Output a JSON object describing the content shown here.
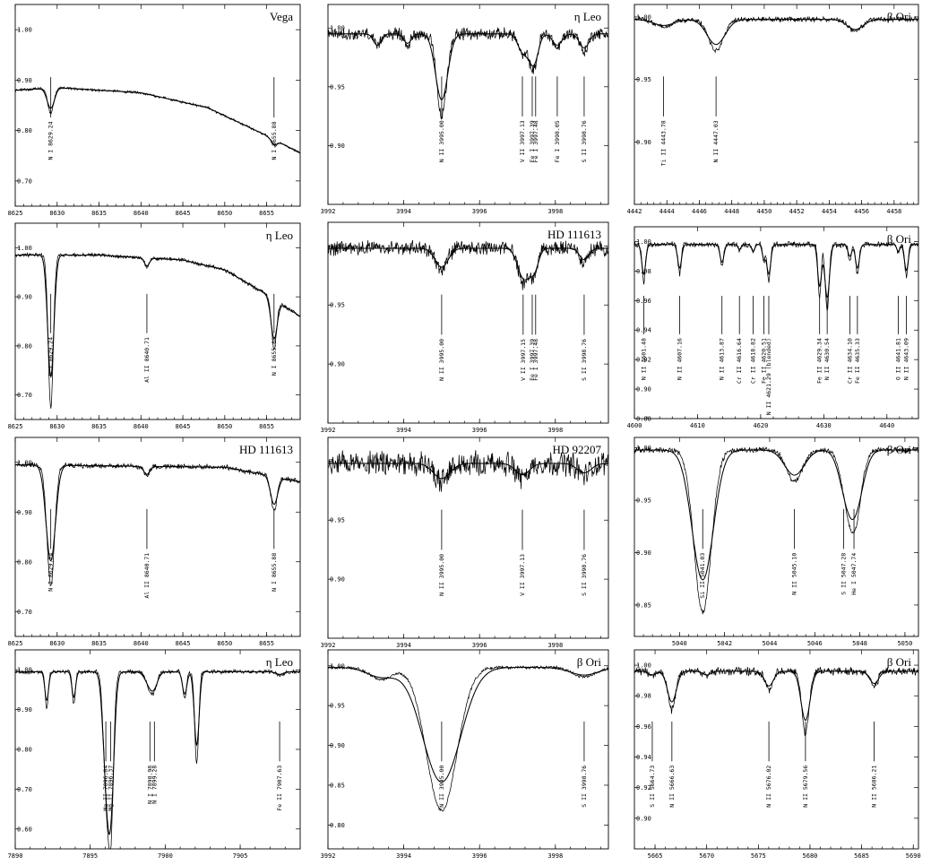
{
  "chart_data": [
    {
      "type": "line",
      "title": "Vega",
      "xlim": [
        8625,
        8659
      ],
      "ylim": [
        0.65,
        1.05
      ],
      "xticks": [
        8625,
        8630,
        8635,
        8640,
        8645,
        8650,
        8655
      ],
      "yticks": [
        0.7,
        0.8,
        0.9,
        1.0
      ],
      "continuum": {
        "x": [
          8625,
          8630,
          8640,
          8648,
          8655,
          8659
        ],
        "y": [
          0.88,
          0.885,
          0.875,
          0.845,
          0.79,
          0.755
        ]
      },
      "lines": [
        {
          "x": 8629.24,
          "depth": 0.05,
          "width": 0.35,
          "label": "N I 8629.24"
        },
        {
          "x": 8655.88,
          "depth": 0.012,
          "width": 0.3,
          "label": "N I 8655.88"
        }
      ],
      "noise": 0.002
    },
    {
      "type": "line",
      "title": "η Leo",
      "xlim": [
        3992,
        3999.4
      ],
      "ylim": [
        0.85,
        1.02
      ],
      "xticks": [
        3992,
        3994,
        3996,
        3998
      ],
      "yticks": [
        0.9,
        0.95,
        1.0
      ],
      "continuum": {
        "x": [
          3992,
          3999.4
        ],
        "y": [
          0.995,
          0.995
        ]
      },
      "lines": [
        {
          "x": 3995.0,
          "depth": 0.07,
          "width": 0.13,
          "label": "N II 3995.00"
        },
        {
          "x": 3997.13,
          "depth": 0.018,
          "width": 0.1,
          "label": "V II 3997.13"
        },
        {
          "x": 3997.39,
          "depth": 0.025,
          "width": 0.1,
          "label": "Fe I 3997.39"
        },
        {
          "x": 3997.48,
          "depth": 0.01,
          "width": 0.08,
          "label": "Fe I 3997.48"
        },
        {
          "x": 3998.05,
          "depth": 0.012,
          "width": 0.1,
          "label": "Fe I 3998.05"
        },
        {
          "x": 3998.76,
          "depth": 0.015,
          "width": 0.1,
          "label": "S II 3998.76"
        },
        {
          "x": 3993.3,
          "depth": 0.012,
          "width": 0.08
        },
        {
          "x": 3994.1,
          "depth": 0.01,
          "width": 0.08
        }
      ],
      "noise": 0.004
    },
    {
      "type": "line",
      "title": "β Ori",
      "xlim": [
        4442,
        4459.5
      ],
      "ylim": [
        0.85,
        1.01
      ],
      "xticks": [
        4442,
        4444,
        4446,
        4448,
        4450,
        4452,
        4454,
        4456,
        4458
      ],
      "yticks": [
        0.9,
        0.95,
        1.0
      ],
      "continuum": {
        "x": [
          4442,
          4459.5
        ],
        "y": [
          0.998,
          0.998
        ]
      },
      "lines": [
        {
          "x": 4443.8,
          "depth": 0.006,
          "width": 0.5,
          "label": "Ti II 4443.78"
        },
        {
          "x": 4447.03,
          "depth": 0.025,
          "width": 0.45,
          "label": "N II 4447.03"
        },
        {
          "x": 4455.6,
          "depth": 0.01,
          "width": 0.4
        }
      ],
      "noise": 0.0015
    },
    {
      "type": "line",
      "title": "η Leo",
      "xlim": [
        8625,
        8659
      ],
      "ylim": [
        0.65,
        1.05
      ],
      "xticks": [
        8625,
        8630,
        8635,
        8640,
        8645,
        8650,
        8655
      ],
      "yticks": [
        0.7,
        0.8,
        0.9,
        1.0
      ],
      "continuum": {
        "x": [
          8625,
          8635,
          8645,
          8650,
          8655,
          8659
        ],
        "y": [
          0.985,
          0.985,
          0.975,
          0.955,
          0.905,
          0.86
        ]
      },
      "lines": [
        {
          "x": 8629.24,
          "depth": 0.31,
          "width": 0.3,
          "label": "N I 8629.24"
        },
        {
          "x": 8640.71,
          "depth": 0.02,
          "width": 0.25,
          "label": "Al II 8640.71"
        },
        {
          "x": 8655.88,
          "depth": 0.1,
          "width": 0.3,
          "label": "N I 8655.88"
        }
      ],
      "noise": 0.003
    },
    {
      "type": "line",
      "title": "HD 111613",
      "xlim": [
        3992,
        3999.4
      ],
      "ylim": [
        0.85,
        1.02
      ],
      "xticks": [
        3992,
        3994,
        3996,
        3998
      ],
      "yticks": [
        0.9,
        0.95,
        1.0
      ],
      "continuum": {
        "x": [
          3992,
          3999.4
        ],
        "y": [
          0.998,
          0.998
        ]
      },
      "lines": [
        {
          "x": 3995.0,
          "depth": 0.02,
          "width": 0.14,
          "label": "N II 3995.00"
        },
        {
          "x": 3997.15,
          "depth": 0.03,
          "width": 0.12,
          "label": "V II 3997.15"
        },
        {
          "x": 3997.39,
          "depth": 0.015,
          "width": 0.1,
          "label": "Fe I 3997.39"
        },
        {
          "x": 3997.48,
          "depth": 0.01,
          "width": 0.08,
          "label": "Fe I 3997.48"
        },
        {
          "x": 3998.76,
          "depth": 0.012,
          "width": 0.1,
          "label": "S II 3998.76"
        }
      ],
      "noise": 0.005
    },
    {
      "type": "line",
      "title": "β Ori",
      "xlim": [
        4600,
        4645
      ],
      "ylim": [
        0.88,
        1.01
      ],
      "xticks": [
        4600,
        4610,
        4620,
        4630,
        4640
      ],
      "yticks": [
        0.88,
        0.9,
        0.92,
        0.94,
        0.96,
        0.98,
        1.0
      ],
      "continuum": {
        "x": [
          4600,
          4645
        ],
        "y": [
          0.998,
          0.998
        ]
      },
      "lines": [
        {
          "x": 4601.48,
          "depth": 0.025,
          "width": 0.25,
          "label": "N II 4601.48"
        },
        {
          "x": 4607.16,
          "depth": 0.02,
          "width": 0.25,
          "label": "N II 4607.16"
        },
        {
          "x": 4613.87,
          "depth": 0.015,
          "width": 0.25,
          "label": "N II 4613.87"
        },
        {
          "x": 4616.64,
          "depth": 0.004,
          "width": 0.2,
          "label": "Cr II 4616.64"
        },
        {
          "x": 4618.82,
          "depth": 0.006,
          "width": 0.2,
          "label": "Cr II 4618.82"
        },
        {
          "x": 4620.51,
          "depth": 0.012,
          "width": 0.2,
          "label": "Fe II 4620.51"
        },
        {
          "x": 4621.29,
          "depth": 0.025,
          "width": 0.25,
          "label": "N II 4621.29 (blended)"
        },
        {
          "x": 4629.34,
          "depth": 0.035,
          "width": 0.25,
          "label": "Fe II 4629.34"
        },
        {
          "x": 4630.54,
          "depth": 0.045,
          "width": 0.3,
          "label": "N II 4630.54"
        },
        {
          "x": 4634.13,
          "depth": 0.01,
          "width": 0.25,
          "label": "Cr II 4634.10"
        },
        {
          "x": 4635.33,
          "depth": 0.02,
          "width": 0.25,
          "label": "Fe II 4635.33"
        },
        {
          "x": 4641.81,
          "depth": 0.006,
          "width": 0.2,
          "label": "O II 4641.81"
        },
        {
          "x": 4643.09,
          "depth": 0.022,
          "width": 0.25,
          "label": "N II 4643.09"
        }
      ],
      "noise": 0.0015
    },
    {
      "type": "line",
      "title": "HD 111613",
      "xlim": [
        8625,
        8659
      ],
      "ylim": [
        0.65,
        1.05
      ],
      "xticks": [
        8625,
        8630,
        8635,
        8640,
        8645,
        8650,
        8655
      ],
      "yticks": [
        0.7,
        0.8,
        0.9,
        1.0
      ],
      "continuum": {
        "x": [
          8625,
          8650,
          8655,
          8659
        ],
        "y": [
          0.995,
          0.99,
          0.975,
          0.96
        ]
      },
      "lines": [
        {
          "x": 8629.24,
          "depth": 0.24,
          "width": 0.45,
          "label": "N I 8629.24"
        },
        {
          "x": 8640.71,
          "depth": 0.02,
          "width": 0.3,
          "label": "Al II 8640.71"
        },
        {
          "x": 8655.88,
          "depth": 0.07,
          "width": 0.35,
          "label": "N I 8655.88"
        }
      ],
      "noise": 0.004
    },
    {
      "type": "line",
      "title": "HD 92207",
      "xlim": [
        3992,
        3999.4
      ],
      "ylim": [
        0.85,
        1.02
      ],
      "xticks": [
        3992,
        3994,
        3996,
        3998
      ],
      "yticks": [
        0.9,
        0.95,
        1.0
      ],
      "continuum": {
        "x": [
          3992,
          3999.4
        ],
        "y": [
          0.998,
          0.998
        ]
      },
      "lines": [
        {
          "x": 3995.0,
          "depth": 0.016,
          "width": 0.18,
          "label": "N II 3995.00"
        },
        {
          "x": 3997.13,
          "depth": 0.012,
          "width": 0.15,
          "label": "V II 3997.13"
        },
        {
          "x": 3998.76,
          "depth": 0.01,
          "width": 0.15,
          "label": "S II 3998.76"
        }
      ],
      "noise": 0.008
    },
    {
      "type": "line",
      "title": "β Ori",
      "xlim": [
        5038,
        5050.6
      ],
      "ylim": [
        0.82,
        1.01
      ],
      "xticks": [
        5040,
        5042,
        5044,
        5046,
        5048,
        5050
      ],
      "yticks": [
        0.85,
        0.9,
        0.95,
        1.0
      ],
      "continuum": {
        "x": [
          5038,
          5050.6
        ],
        "y": [
          0.998,
          0.998
        ]
      },
      "lines": [
        {
          "x": 5041.03,
          "depth": 0.155,
          "width": 0.38,
          "label": "Si II 5041.03"
        },
        {
          "x": 5045.1,
          "depth": 0.03,
          "width": 0.35,
          "label": "N II 5045.10"
        },
        {
          "x": 5047.28,
          "depth": 0.02,
          "width": 0.25,
          "label": "S II 5047.28"
        },
        {
          "x": 5047.74,
          "depth": 0.075,
          "width": 0.3,
          "label": "He I 5047.74"
        }
      ],
      "noise": 0.002
    },
    {
      "type": "line",
      "title": "η Leo",
      "xlim": [
        7890,
        7909
      ],
      "ylim": [
        0.55,
        1.05
      ],
      "xticks": [
        7890,
        7895,
        7900,
        7905
      ],
      "yticks": [
        0.6,
        0.7,
        0.8,
        0.9,
        1.0
      ],
      "continuum": {
        "x": [
          7890,
          7909
        ],
        "y": [
          0.995,
          0.995
        ]
      },
      "lines": [
        {
          "x": 7892.1,
          "depth": 0.09,
          "width": 0.1
        },
        {
          "x": 7893.9,
          "depth": 0.08,
          "width": 0.1
        },
        {
          "x": 7896.04,
          "depth": 0.25,
          "width": 0.18,
          "label": "Mg II 7896.04"
        },
        {
          "x": 7896.37,
          "depth": 0.4,
          "width": 0.18,
          "label": "Mg II 7896.37"
        },
        {
          "x": 7898.98,
          "depth": 0.04,
          "width": 0.25,
          "label": "N I 7898.98"
        },
        {
          "x": 7899.28,
          "depth": 0.03,
          "width": 0.2,
          "label": "N I 7899.28"
        },
        {
          "x": 7901.3,
          "depth": 0.07,
          "width": 0.12
        },
        {
          "x": 7902.1,
          "depth": 0.23,
          "width": 0.13
        },
        {
          "x": 7907.63,
          "depth": 0.008,
          "width": 0.2,
          "label": "Fe II 7907.63"
        }
      ],
      "noise": 0.004
    },
    {
      "type": "line",
      "title": "β Ori",
      "xlim": [
        3992,
        3999.4
      ],
      "ylim": [
        0.77,
        1.02
      ],
      "xticks": [
        3992,
        3994,
        3996,
        3998
      ],
      "yticks": [
        0.8,
        0.85,
        0.9,
        0.95,
        1.0
      ],
      "continuum": {
        "x": [
          3992,
          3999.4
        ],
        "y": [
          0.998,
          0.998
        ]
      },
      "lines": [
        {
          "x": 3995.0,
          "depth": 0.18,
          "width": 0.4,
          "label": "N II 3995.00"
        },
        {
          "x": 3993.4,
          "depth": 0.015,
          "width": 0.3
        },
        {
          "x": 3998.76,
          "depth": 0.012,
          "width": 0.3,
          "label": "S II 3998.76"
        }
      ],
      "noise": 0.0015
    },
    {
      "type": "line",
      "title": "β Ori",
      "xlim": [
        5663,
        5690.5
      ],
      "ylim": [
        0.88,
        1.01
      ],
      "xticks": [
        5665,
        5670,
        5675,
        5680,
        5685,
        5690
      ],
      "yticks": [
        0.9,
        0.92,
        0.94,
        0.96,
        0.98,
        1.0
      ],
      "continuum": {
        "x": [
          5663,
          5690.5
        ],
        "y": [
          0.996,
          0.996
        ]
      },
      "lines": [
        {
          "x": 5666.63,
          "depth": 0.025,
          "width": 0.35,
          "label": "N II 5666.63"
        },
        {
          "x": 5664.73,
          "depth": 0.003,
          "width": 0.3,
          "label": "S II 5664.73"
        },
        {
          "x": 5670.0,
          "depth": 0.003,
          "width": 0.3
        },
        {
          "x": 5676.02,
          "depth": 0.012,
          "width": 0.35,
          "label": "N II 5676.02"
        },
        {
          "x": 5679.56,
          "depth": 0.04,
          "width": 0.35,
          "label": "N II 5679.56"
        },
        {
          "x": 5686.21,
          "depth": 0.01,
          "width": 0.35,
          "label": "N II 5686.21"
        }
      ],
      "noise": 0.002
    }
  ]
}
